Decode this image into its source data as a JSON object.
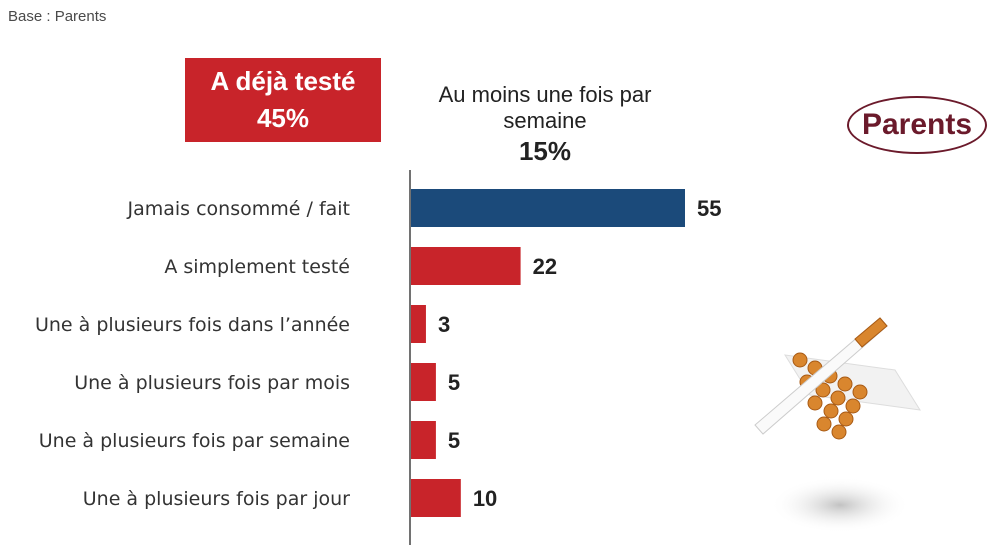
{
  "header": {
    "base_label": "Base : Parents",
    "tested_label": "A déjà testé",
    "tested_value": "45%",
    "weekly_label": "Au moins une fois par semaine",
    "weekly_value": "15%",
    "badge_label": "Parents"
  },
  "colors": {
    "accent_red": "#c8242a",
    "navy": "#1b4a7a",
    "badge": "#6b1a2b"
  },
  "chart_data": {
    "type": "bar",
    "orientation": "horizontal",
    "categories": [
      "Jamais consommé / fait",
      "A simplement testé",
      "Une à plusieurs fois dans l’année",
      "Une à plusieurs fois par mois",
      "Une à plusieurs fois par semaine",
      "Une à plusieurs fois par jour"
    ],
    "values": [
      55,
      22,
      3,
      5,
      5,
      10
    ],
    "bar_colors": [
      "#1b4a7a",
      "#c8242a",
      "#c8242a",
      "#c8242a",
      "#c8242a",
      "#c8242a"
    ],
    "xlim": [
      0,
      100
    ],
    "grid": false,
    "legend": "none"
  }
}
